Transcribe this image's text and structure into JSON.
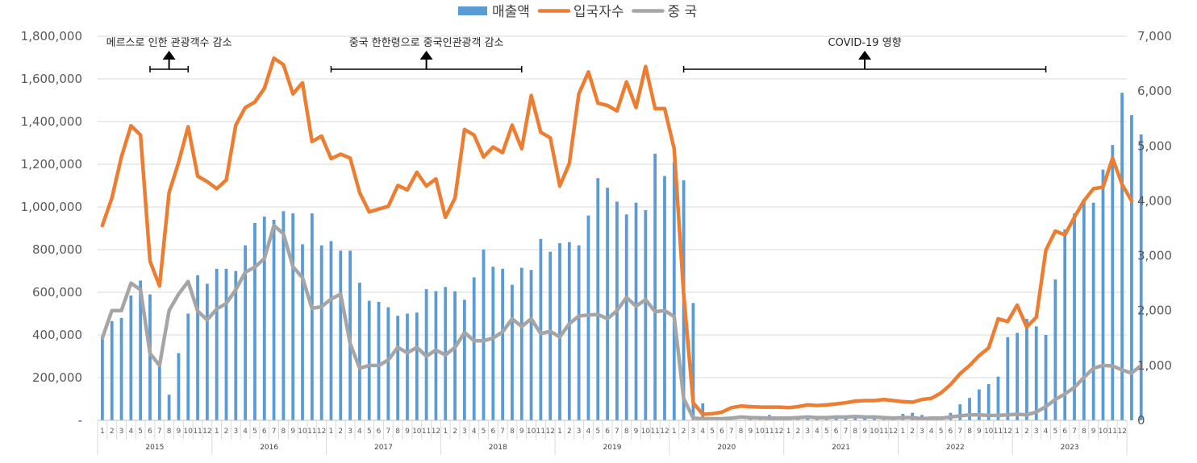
{
  "chart_data": {
    "type": "bar+line",
    "title": "",
    "legend": {
      "position": "top",
      "items": [
        {
          "label": "매출액",
          "color": "#5b9bd5",
          "kind": "bar"
        },
        {
          "label": "입국자수",
          "color": "#ed7d31",
          "kind": "line"
        },
        {
          "label": "중 국",
          "color": "#a5a5a5",
          "kind": "line"
        }
      ]
    },
    "years": [
      "2015",
      "2016",
      "2017",
      "2018",
      "2019",
      "2020",
      "2021",
      "2022",
      "2023"
    ],
    "months": [
      "1",
      "2",
      "3",
      "4",
      "5",
      "6",
      "7",
      "8",
      "9",
      "10",
      "11",
      "12"
    ],
    "y_left": {
      "min": 0,
      "max": 1800000,
      "ticks": [
        "-",
        "200,000",
        "400,000",
        "600,000",
        "800,000",
        "1,000,000",
        "1,200,000",
        "1,400,000",
        "1,600,000",
        "1,800,000"
      ],
      "tick_values": [
        0,
        200000,
        400000,
        600000,
        800000,
        1000000,
        1200000,
        1400000,
        1600000,
        1800000
      ]
    },
    "y_right": {
      "min": 0,
      "max": 7000,
      "ticks": [
        "0",
        "1,000",
        "2,000",
        "3,000",
        "4,000",
        "5,000",
        "6,000",
        "7,000"
      ],
      "tick_values": [
        0,
        1000,
        2000,
        3000,
        4000,
        5000,
        6000,
        7000
      ]
    },
    "gridlines": true,
    "series": [
      {
        "name": "매출액",
        "kind": "bar",
        "axis": "left",
        "color": "#5b9bd5",
        "values": [
          390000,
          465000,
          480000,
          585000,
          655000,
          590000,
          270000,
          120000,
          315000,
          500000,
          680000,
          640000,
          710000,
          710000,
          700000,
          820000,
          925000,
          955000,
          940000,
          980000,
          970000,
          825000,
          970000,
          820000,
          840000,
          795000,
          795000,
          645000,
          560000,
          555000,
          530000,
          490000,
          500000,
          505000,
          615000,
          605000,
          625000,
          605000,
          565000,
          670000,
          800000,
          720000,
          710000,
          635000,
          715000,
          705000,
          850000,
          790000,
          830000,
          835000,
          820000,
          960000,
          1135000,
          1090000,
          1025000,
          965000,
          1020000,
          985000,
          1250000,
          1145000,
          1210000,
          1125000,
          550000,
          80000,
          0,
          0,
          0,
          0,
          5000,
          15000,
          25000,
          10000,
          10000,
          5000,
          10000,
          15000,
          20000,
          15000,
          20000,
          15000,
          10000,
          10000,
          15000,
          5000,
          30000,
          35000,
          25000,
          15000,
          5000,
          35000,
          75000,
          105000,
          145000,
          170000,
          205000,
          390000,
          410000,
          475000,
          440000,
          400000,
          660000,
          895000,
          970000,
          1035000,
          1020000,
          1175000,
          1290000,
          1535000,
          1430000,
          1340000
        ]
      },
      {
        "name": "입국자수",
        "kind": "line",
        "axis": "right",
        "color": "#ed7d31",
        "values": [
          3550,
          4050,
          4800,
          5370,
          5200,
          2900,
          2450,
          4150,
          4700,
          5350,
          4450,
          4350,
          4220,
          4380,
          5380,
          5700,
          5800,
          6050,
          6600,
          6480,
          5950,
          6150,
          5080,
          5180,
          4770,
          4850,
          4780,
          4150,
          3800,
          3850,
          3900,
          4280,
          4200,
          4520,
          4270,
          4400,
          3700,
          4050,
          5300,
          5200,
          4800,
          4980,
          4880,
          5380,
          4950,
          5920,
          5250,
          5150,
          4270,
          4680,
          5950,
          6350,
          5780,
          5740,
          5640,
          6170,
          5700,
          6450,
          5680,
          5680,
          4950,
          2300,
          320,
          110,
          120,
          150,
          230,
          260,
          250,
          240,
          240,
          240,
          230,
          250,
          280,
          270,
          280,
          300,
          320,
          350,
          360,
          360,
          380,
          360,
          340,
          330,
          380,
          400,
          500,
          650,
          850,
          1000,
          1180,
          1320,
          1850,
          1800,
          2100,
          1700,
          1880,
          3100,
          3450,
          3380,
          3700,
          4000,
          4220,
          4250,
          4780,
          4300,
          4000
        ]
      },
      {
        "name": "중 국",
        "kind": "line",
        "axis": "right",
        "color": "#a5a5a5",
        "values": [
          1500,
          2000,
          2000,
          2500,
          2380,
          1220,
          1000,
          2000,
          2300,
          2530,
          1990,
          1830,
          2030,
          2130,
          2380,
          2700,
          2790,
          2950,
          3550,
          3400,
          2800,
          2600,
          2040,
          2070,
          2210,
          2300,
          1400,
          950,
          1000,
          1000,
          1100,
          1330,
          1230,
          1330,
          1170,
          1280,
          1190,
          1330,
          1600,
          1450,
          1450,
          1500,
          1610,
          1850,
          1710,
          1850,
          1580,
          1620,
          1520,
          1760,
          1900,
          1920,
          1930,
          1850,
          2000,
          2240,
          2080,
          2200,
          1980,
          2000,
          1890,
          400,
          40,
          30,
          30,
          30,
          40,
          60,
          50,
          45,
          40,
          40,
          40,
          50,
          60,
          50,
          50,
          60,
          60,
          70,
          60,
          60,
          50,
          40,
          50,
          50,
          30,
          40,
          40,
          60,
          80,
          100,
          100,
          90,
          90,
          100,
          110,
          100,
          150,
          250,
          380,
          480,
          600,
          780,
          950,
          1000,
          990,
          920,
          860,
          1000
        ]
      }
    ],
    "annotations": [
      {
        "text": "메르스로 인한 관광객수 감소",
        "span_months": [
          5,
          9
        ]
      },
      {
        "text": "중국 한한령으로 중국인관광객 감소",
        "span_months": [
          24,
          44
        ]
      },
      {
        "text": "COVID-19 영향",
        "span_months": [
          61,
          99
        ]
      }
    ]
  }
}
